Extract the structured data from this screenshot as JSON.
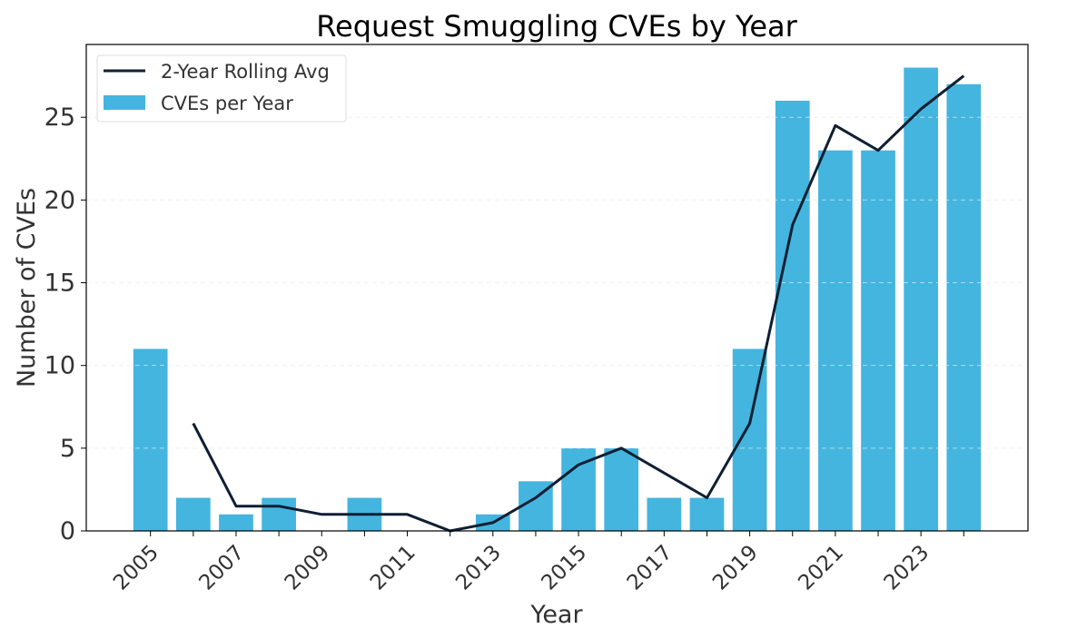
{
  "chart_data": {
    "type": "bar",
    "title": "Request Smuggling CVEs by Year",
    "xlabel": "Year",
    "ylabel": "Number of CVEs",
    "x": [
      2005,
      2006,
      2007,
      2008,
      2009,
      2010,
      2011,
      2012,
      2013,
      2014,
      2015,
      2016,
      2017,
      2018,
      2019,
      2020,
      2021,
      2022,
      2023,
      2024
    ],
    "xtick_labels": [
      "2005",
      "2007",
      "2009",
      "2011",
      "2013",
      "2015",
      "2017",
      "2019",
      "2021",
      "2023"
    ],
    "yticks": [
      0,
      5,
      10,
      15,
      20,
      25
    ],
    "ylim": [
      0,
      29.4
    ],
    "grid": true,
    "legend_position": "top-left",
    "series": [
      {
        "name": "CVEs per Year",
        "type": "bar",
        "color": "#44b5de",
        "values": [
          11,
          2,
          1,
          2,
          0,
          2,
          0,
          0,
          1,
          3,
          5,
          5,
          2,
          2,
          11,
          26,
          23,
          23,
          28,
          27
        ]
      },
      {
        "name": "2-Year Rolling Avg",
        "type": "line",
        "color": "#0f1f33",
        "values": [
          null,
          6.5,
          1.5,
          1.5,
          1,
          1,
          1,
          0,
          0.5,
          2,
          4,
          5,
          null,
          2,
          6.5,
          18.5,
          24.5,
          23,
          25.5,
          27.5
        ]
      }
    ]
  }
}
